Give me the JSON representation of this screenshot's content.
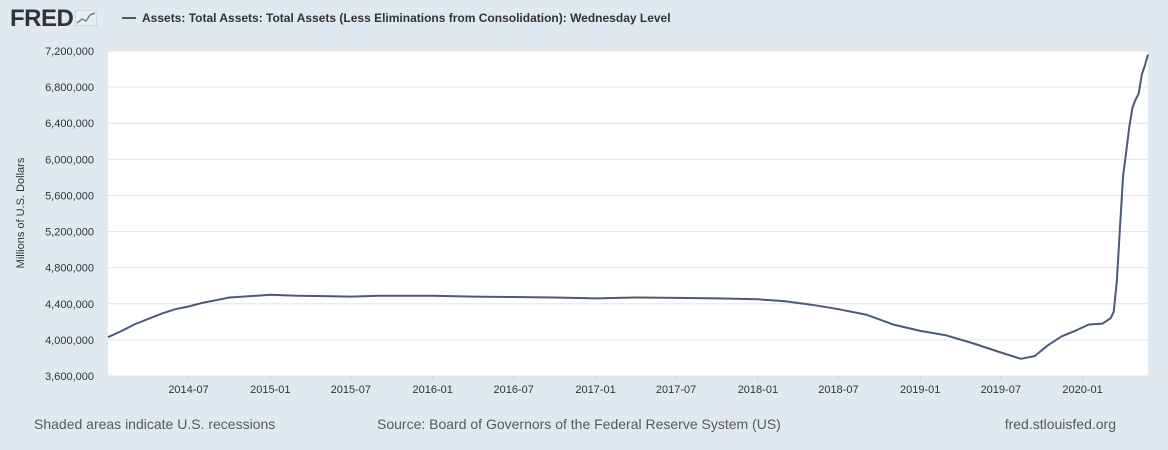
{
  "header": {
    "logo_text": "FRED",
    "logo_icon": "fred-chart-icon",
    "legend_label": "Assets: Total Assets: Total Assets (Less Eliminations from Consolidation): Wednesday Level"
  },
  "footer": {
    "left": "Shaded areas indicate U.S. recessions",
    "center": "Source: Board of Governors of the Federal Reserve System (US)",
    "right": "fred.stlouisfed.org"
  },
  "colors": {
    "background": "#e1e9f0",
    "plot_background": "#ffffff",
    "series": "#4b5a75",
    "gridline": "#e6e6e6"
  },
  "chart_data": {
    "type": "line",
    "title": "",
    "xlabel": "",
    "ylabel": "Millions of U.S. Dollars",
    "ylim": [
      3600000,
      7200000
    ],
    "xlim": [
      "2014-01-01",
      "2020-05-27"
    ],
    "yticks": [
      3600000,
      4000000,
      4400000,
      4800000,
      5200000,
      5600000,
      6000000,
      6400000,
      6800000,
      7200000
    ],
    "ytick_labels": [
      "3,600,000",
      "4,000,000",
      "4,400,000",
      "4,800,000",
      "5,200,000",
      "5,600,000",
      "6,000,000",
      "6,400,000",
      "6,800,000",
      "7,200,000"
    ],
    "xticks": [
      "2014-07-01",
      "2015-01-01",
      "2015-07-01",
      "2016-01-01",
      "2016-07-01",
      "2017-01-01",
      "2017-07-01",
      "2018-01-01",
      "2018-07-01",
      "2019-01-01",
      "2019-07-01",
      "2020-01-01"
    ],
    "xtick_labels": [
      "2014-07",
      "2015-01",
      "2015-07",
      "2016-01",
      "2016-07",
      "2017-01",
      "2017-07",
      "2018-01",
      "2018-07",
      "2019-01",
      "2019-07",
      "2020-01"
    ],
    "grid": true,
    "legend": "top-left",
    "series": [
      {
        "x": [
          "2014-01-01",
          "2014-02-01",
          "2014-03-01",
          "2014-04-01",
          "2014-05-01",
          "2014-06-01",
          "2014-07-01",
          "2014-08-01",
          "2014-09-01",
          "2014-10-01",
          "2014-11-01",
          "2014-12-01",
          "2015-01-01",
          "2015-03-01",
          "2015-05-01",
          "2015-07-01",
          "2015-09-01",
          "2015-11-01",
          "2016-01-01",
          "2016-04-01",
          "2016-07-01",
          "2016-10-01",
          "2017-01-01",
          "2017-04-01",
          "2017-07-01",
          "2017-10-01",
          "2018-01-01",
          "2018-03-01",
          "2018-05-01",
          "2018-07-01",
          "2018-09-01",
          "2018-11-01",
          "2019-01-01",
          "2019-03-01",
          "2019-05-01",
          "2019-07-01",
          "2019-08-15",
          "2019-09-15",
          "2019-10-15",
          "2019-11-15",
          "2019-12-15",
          "2020-01-15",
          "2020-02-15",
          "2020-03-04",
          "2020-03-11",
          "2020-03-18",
          "2020-03-25",
          "2020-04-01",
          "2020-04-08",
          "2020-04-15",
          "2020-04-22",
          "2020-04-29",
          "2020-05-06",
          "2020-05-13",
          "2020-05-20",
          "2020-05-27"
        ],
        "y": [
          4030000,
          4100000,
          4170000,
          4230000,
          4290000,
          4340000,
          4370000,
          4410000,
          4440000,
          4470000,
          4480000,
          4490000,
          4500000,
          4490000,
          4485000,
          4480000,
          4490000,
          4490000,
          4490000,
          4480000,
          4475000,
          4470000,
          4460000,
          4470000,
          4465000,
          4460000,
          4450000,
          4430000,
          4390000,
          4340000,
          4280000,
          4170000,
          4100000,
          4050000,
          3960000,
          3860000,
          3790000,
          3820000,
          3940000,
          4040000,
          4100000,
          4170000,
          4180000,
          4240000,
          4310000,
          4660000,
          5250000,
          5820000,
          6080000,
          6360000,
          6570000,
          6660000,
          6730000,
          6940000,
          7040000,
          7160000
        ]
      }
    ]
  }
}
